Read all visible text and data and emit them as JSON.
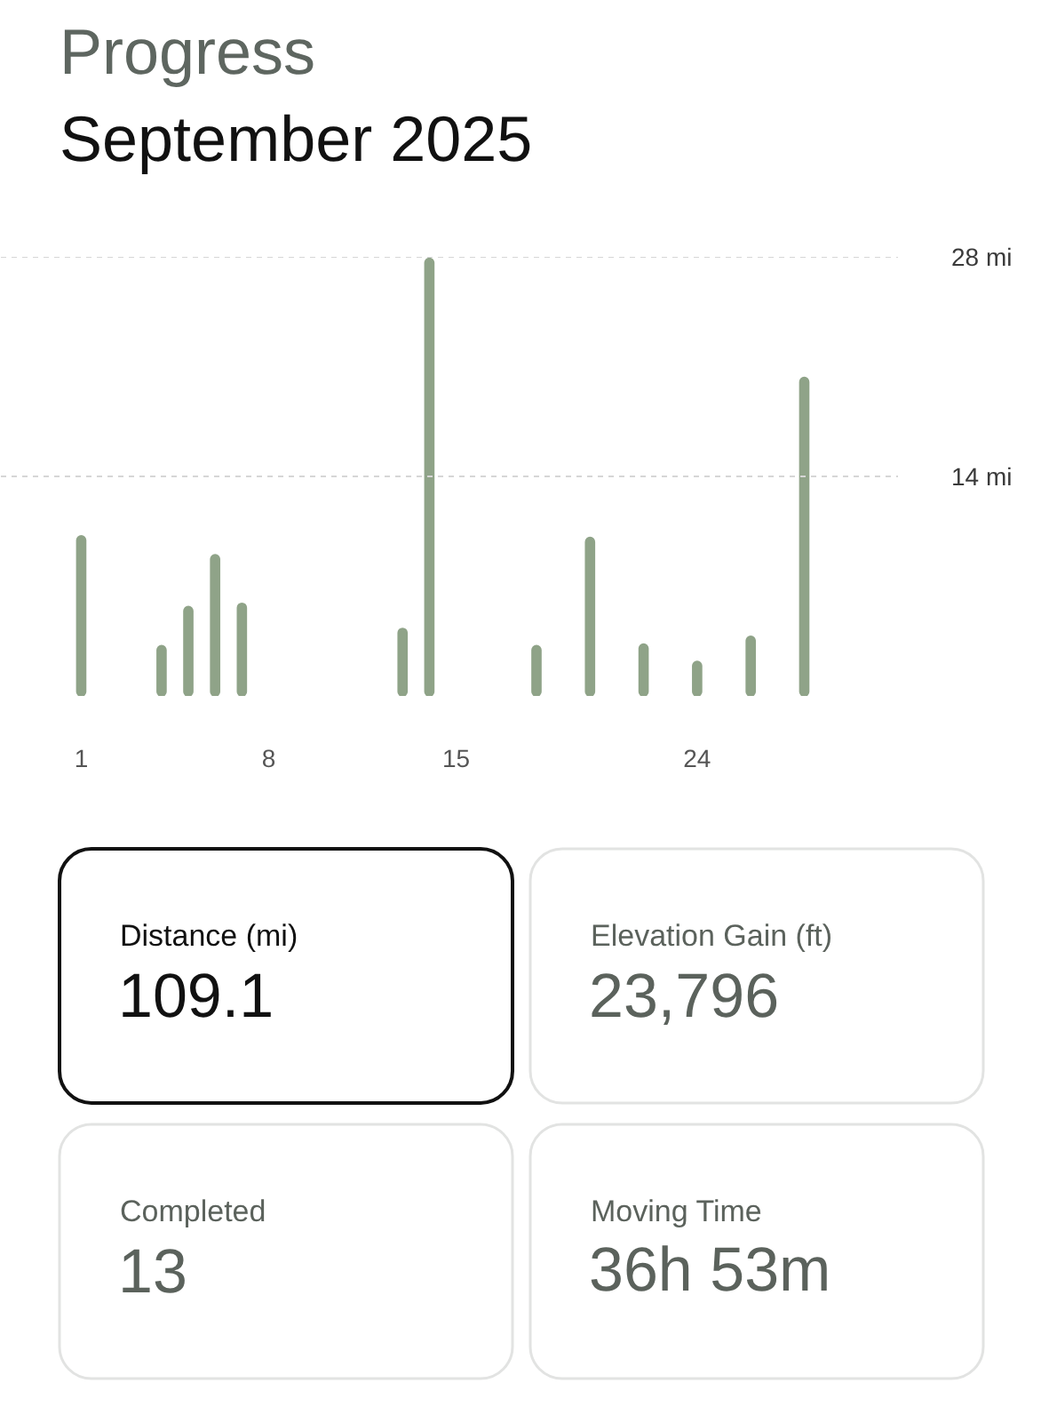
{
  "chart_data": [
    {
      "type": "bar",
      "title": "Progress",
      "subtitle": "September 2025",
      "x": [
        1,
        4,
        5,
        6,
        7,
        13,
        14,
        18,
        20,
        22,
        24,
        26,
        28
      ],
      "values": [
        10.2,
        3.2,
        5.7,
        9.0,
        5.9,
        4.3,
        27.9,
        3.2,
        10.1,
        3.3,
        2.2,
        3.8,
        20.3
      ],
      "color": "#8fa388",
      "xlim": [
        -2,
        31.5
      ],
      "xticks": [
        1,
        8,
        15,
        24
      ],
      "ylim": [
        0,
        28
      ],
      "yticks": [
        {
          "value": 14,
          "label": "14 mi"
        },
        {
          "value": 28,
          "label": "28 mi"
        }
      ],
      "grid": "y"
    },
    {
      "type": "other",
      "categories": [
        "Distance (mi)",
        "Elevation Gain (ft)",
        "Completed",
        "Moving Time"
      ],
      "value_labels": [
        "109.1",
        "23,796",
        "13",
        "36h 53m"
      ]
    }
  ]
}
